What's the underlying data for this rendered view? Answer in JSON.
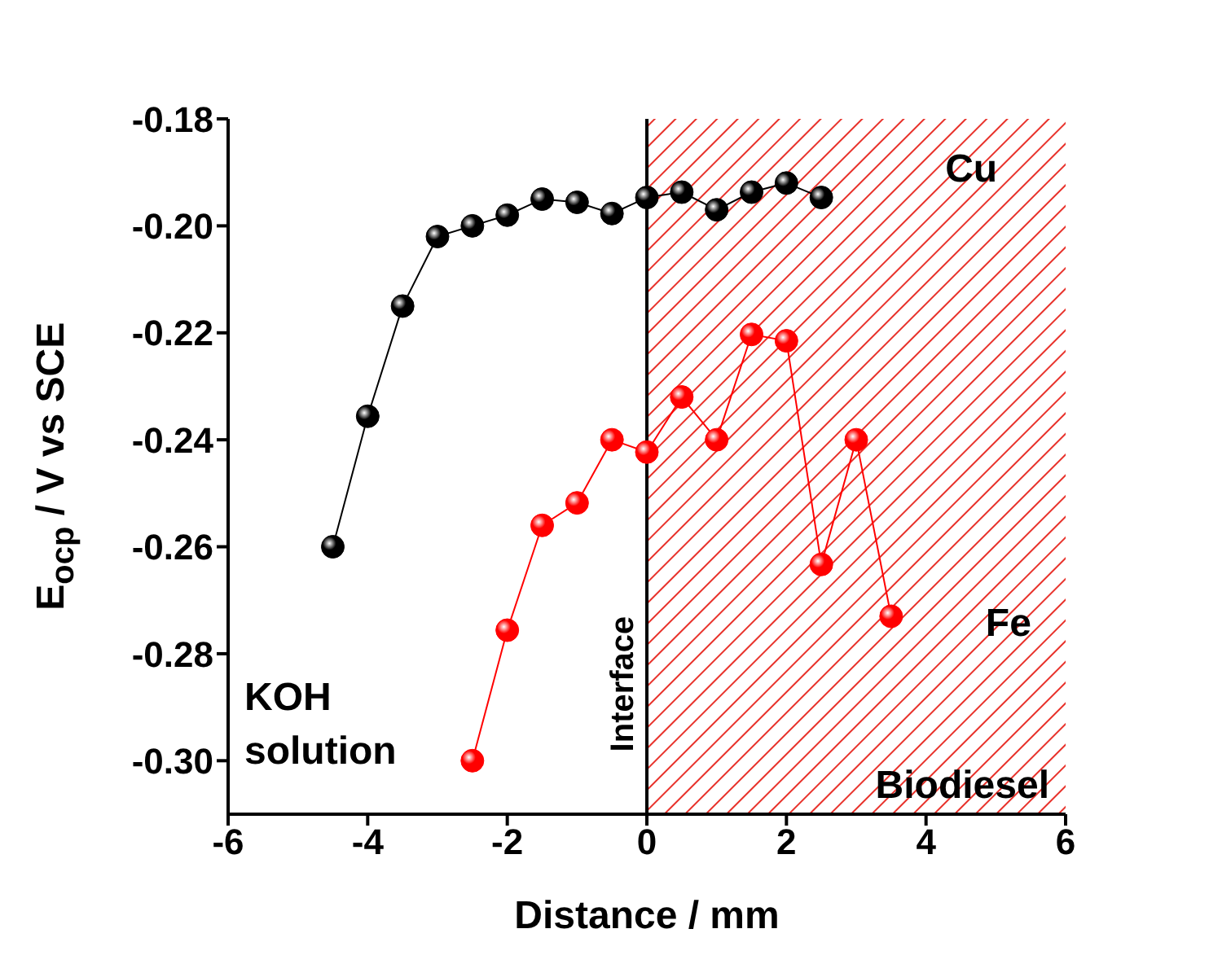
{
  "chart_data": {
    "type": "line",
    "xlabel": "Distance / mm",
    "ylabel": "E$_{ocp}$ / V vs SCE",
    "xlim": [
      -6,
      6
    ],
    "xticks": [
      -6,
      -4,
      -2,
      0,
      2,
      4,
      6
    ],
    "ylim": [
      -0.31,
      -0.18
    ],
    "yticks": [
      {
        "value": -0.3,
        "label": "-0.30"
      },
      -0.28,
      -0.26,
      -0.24,
      -0.22,
      {
        "value": -0.2,
        "label": "-0.20"
      },
      -0.18
    ],
    "marker": "circle",
    "line_style": "solid",
    "series": [
      {
        "name": "Cu",
        "color": "#000000",
        "x": [
          -4.5,
          -4,
          -3.5,
          -3,
          -2.5,
          -2,
          -1.5,
          -1,
          -0.5,
          0,
          0.5,
          1,
          1.5,
          2,
          2.5
        ],
        "values": [
          -0.26,
          -0.2356,
          -0.215,
          -0.202,
          -0.2,
          -0.198,
          -0.195,
          -0.1956,
          -0.1977,
          -0.1947,
          -0.1937,
          -0.197,
          -0.1937,
          -0.192,
          -0.1947
        ]
      },
      {
        "name": "Fe",
        "color": "#ff0000",
        "x": [
          -2.5,
          -2,
          -1.5,
          -1,
          -0.5,
          0,
          0.5,
          1,
          1.5,
          2,
          2.5,
          3,
          3.5
        ],
        "values": [
          -0.3,
          -0.2756,
          -0.256,
          -0.2518,
          -0.24,
          -0.2423,
          -0.232,
          -0.24,
          -0.2203,
          -0.2215,
          -0.2633,
          -0.24,
          -0.273
        ]
      }
    ],
    "ref_lines": [
      {
        "axis": "x",
        "value": 0,
        "label": "Interface",
        "color": "#000000"
      }
    ],
    "bands": [
      {
        "axis": "x",
        "from": 0,
        "to": 6,
        "label": "Biodiesel",
        "color": "#e8312a"
      }
    ],
    "annotations": [
      "KOH solution"
    ]
  }
}
